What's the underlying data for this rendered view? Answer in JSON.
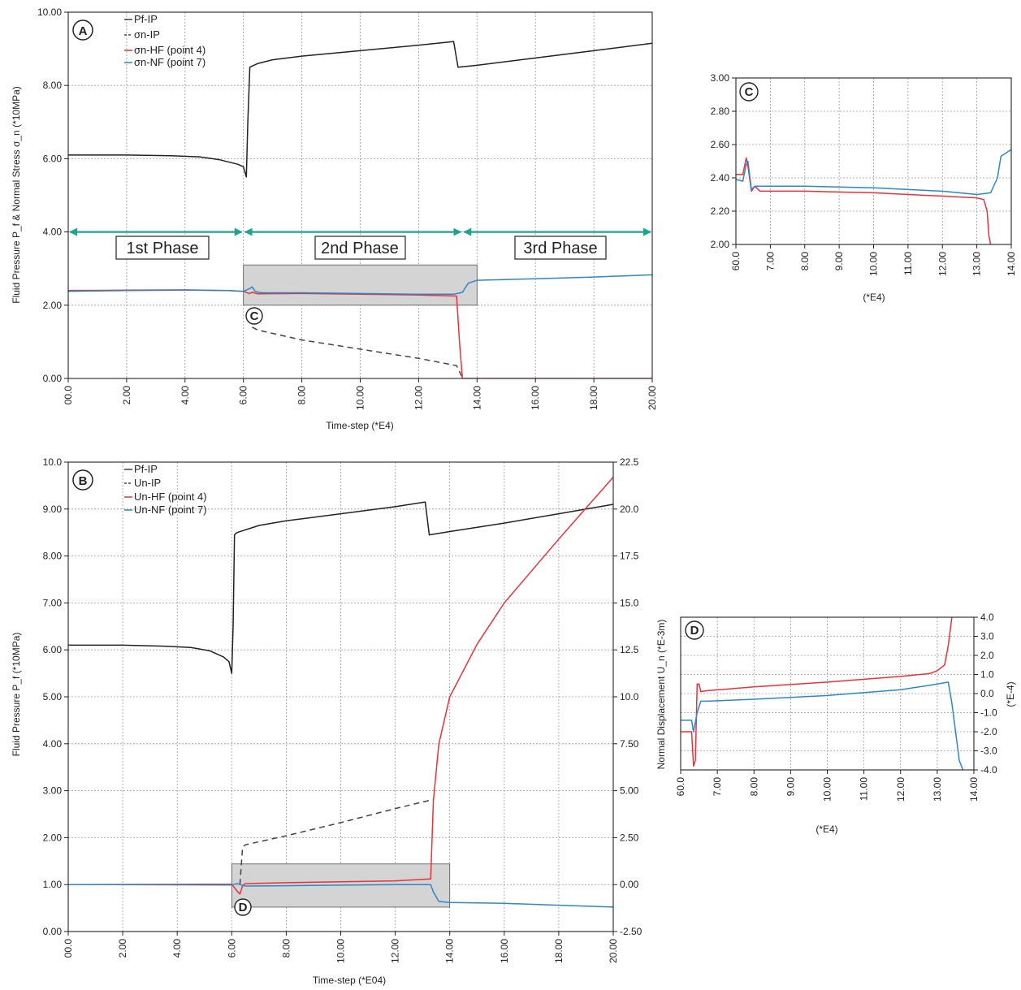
{
  "panels": {
    "A": {
      "badge": "A",
      "xlabel": "Time-step (*E4)",
      "ylabel": "Fluid Pressure P_f & Normal Stress σ_n (*10MPa)",
      "xticks": [
        "00.0",
        "2.00",
        "4.00",
        "6.00",
        "8.00",
        "10.00",
        "12.00",
        "14.00",
        "16.00",
        "18.00",
        "20.00"
      ],
      "yticks": [
        "0.00",
        "2.00",
        "4.00",
        "6.00",
        "8.00",
        "10.00"
      ],
      "legend": [
        "Pf-IP",
        "σn-IP",
        "σn-HF (point 4)",
        "σn-NF (point 7)"
      ],
      "phases": [
        "1st Phase",
        "2nd Phase",
        "3rd Phase"
      ],
      "inset_marker": "C"
    },
    "B": {
      "badge": "B",
      "xlabel": "Time-step (*E04)",
      "ylabel_left": "Fluid Pressure P_f (*10MPa)",
      "xticks": [
        "00.0",
        "2.00",
        "4.00",
        "6.00",
        "8.00",
        "10.00",
        "12.00",
        "14.00",
        "16.00",
        "18.00",
        "20.00"
      ],
      "yticks_left": [
        "0.00",
        "1.00",
        "2.00",
        "3.00",
        "4.00",
        "5.00",
        "6.00",
        "7.00",
        "8.00",
        "9.00",
        "10.0"
      ],
      "yticks_right": [
        "-2.50",
        "0.00",
        "2.50",
        "5.00",
        "7.50",
        "10.0",
        "12.5",
        "15.0",
        "17.5",
        "20.0",
        "22.5"
      ],
      "legend": [
        "Pf-IP",
        "Un-IP",
        "Un-HF (point 4)",
        "Un-NF (point 7)"
      ],
      "inset_marker": "D"
    },
    "C": {
      "badge": "C",
      "xlabel": "(*E4)",
      "xticks": [
        "60.0",
        "7.00",
        "8.00",
        "9.00",
        "10.00",
        "11.00",
        "12.00",
        "13.00",
        "14.00"
      ],
      "yticks": [
        "2.00",
        "2.20",
        "2.40",
        "2.60",
        "2.80",
        "3.00"
      ]
    },
    "D": {
      "badge": "D",
      "xlabel": "(*E4)",
      "ylabel_left": "Normal Displacement U_n (*E-3m)",
      "ylabel_right": "(*E-4)",
      "xticks": [
        "60.0",
        "7.00",
        "8.00",
        "9.00",
        "10.00",
        "11.00",
        "12.00",
        "13.00",
        "14.00"
      ],
      "yticks_right": [
        "-4.0",
        "-3.0",
        "-2.0",
        "-1.0",
        "0.0",
        "1.0",
        "2.0",
        "3.0",
        "4.0"
      ]
    }
  },
  "colors": {
    "pf": "#222222",
    "ip": "#444444",
    "hf": "#e8323c",
    "nf": "#2f86c8",
    "arrow": "#1ea58e",
    "shade": "#d4d4d4"
  },
  "chart_data": [
    {
      "id": "A",
      "type": "line",
      "xlabel": "Time-step (*E4)",
      "ylabel": "Fluid Pressure P_f & Normal Stress σ_n (*10MPa)",
      "xlim": [
        0,
        20
      ],
      "ylim": [
        0,
        10
      ],
      "grid": true,
      "legend_position": "top-left",
      "series": [
        {
          "name": "Pf-IP",
          "style": "solid",
          "color": "#222222",
          "x": [
            0,
            2,
            3.5,
            4.5,
            5.2,
            5.8,
            6.0,
            6.1,
            6.15,
            6.22,
            6.5,
            7,
            8,
            10,
            12,
            13.2,
            13.35,
            14,
            16,
            18,
            20
          ],
          "y": [
            6.1,
            6.1,
            6.08,
            6.05,
            5.97,
            5.85,
            5.78,
            5.5,
            7.0,
            8.5,
            8.6,
            8.7,
            8.8,
            8.95,
            9.1,
            9.2,
            8.5,
            8.55,
            8.75,
            8.95,
            9.15
          ]
        },
        {
          "name": "σn-IP",
          "style": "dashed",
          "color": "#444444",
          "x": [
            6.3,
            6.5,
            8,
            10,
            12,
            13.3,
            13.5
          ],
          "y": [
            1.4,
            1.32,
            1.05,
            0.8,
            0.55,
            0.35,
            0.02
          ]
        },
        {
          "name": "σn-HF (point 4)",
          "style": "solid",
          "color": "#e8323c",
          "x": [
            0,
            2,
            4,
            5.5,
            6.0,
            6.2,
            6.3,
            6.5,
            8,
            10,
            12,
            13.3,
            13.4,
            13.5,
            14,
            16,
            18,
            20
          ],
          "y": [
            2.4,
            2.41,
            2.42,
            2.4,
            2.38,
            2.32,
            2.35,
            2.31,
            2.32,
            2.3,
            2.28,
            2.25,
            1.0,
            0.0,
            0.0,
            0.0,
            0.0,
            0.0
          ]
        },
        {
          "name": "σn-NF (point 7)",
          "style": "solid",
          "color": "#2f86c8",
          "x": [
            0,
            2,
            4,
            5.5,
            6.0,
            6.2,
            6.3,
            6.4,
            6.6,
            8,
            10,
            12,
            13.2,
            13.5,
            13.7,
            14,
            16,
            18,
            20
          ],
          "y": [
            2.38,
            2.4,
            2.41,
            2.4,
            2.38,
            2.45,
            2.5,
            2.38,
            2.34,
            2.34,
            2.32,
            2.3,
            2.3,
            2.35,
            2.6,
            2.68,
            2.72,
            2.77,
            2.83
          ]
        }
      ]
    },
    {
      "id": "B",
      "type": "line",
      "xlabel": "Time-step (*E04)",
      "ylabel_left": "Fluid Pressure P_f (*10MPa)",
      "ylabel_right": "Normal Displacement U_n (*E-3m)",
      "xlim": [
        0,
        20
      ],
      "ylim_left": [
        0,
        10
      ],
      "ylim_right": [
        -2.5,
        22.5
      ],
      "grid": true,
      "legend_position": "top-left",
      "series": [
        {
          "name": "Pf-IP",
          "axis": "left",
          "style": "solid",
          "color": "#222222",
          "x": [
            0,
            2,
            3.5,
            4.5,
            5.2,
            5.7,
            5.9,
            6.0,
            6.05,
            6.1,
            6.15,
            6.2,
            7,
            8,
            10,
            12,
            13.1,
            13.25,
            14,
            16,
            18,
            20
          ],
          "y": [
            6.1,
            6.1,
            6.08,
            6.05,
            5.98,
            5.85,
            5.75,
            5.5,
            6.5,
            8.45,
            8.48,
            8.5,
            8.65,
            8.75,
            8.9,
            9.05,
            9.15,
            8.45,
            8.52,
            8.7,
            8.9,
            9.1
          ]
        },
        {
          "name": "Un-IP",
          "axis": "right",
          "style": "dashed",
          "color": "#444444",
          "x": [
            6.3,
            6.35,
            6.4,
            6.5,
            8,
            10,
            12,
            13.3,
            13.4
          ],
          "y": [
            0.0,
            1.0,
            2.0,
            2.12,
            2.6,
            3.3,
            4.05,
            4.5,
            4.55
          ]
        },
        {
          "name": "Un-HF (point 4)",
          "axis": "right",
          "style": "solid",
          "color": "#e8323c",
          "x": [
            0,
            6.0,
            6.2,
            6.3,
            6.4,
            6.5,
            8,
            10,
            12,
            13.3,
            13.4,
            13.6,
            14,
            15,
            16,
            18,
            20
          ],
          "y": [
            0.0,
            0.02,
            -0.35,
            -0.5,
            -0.05,
            0.05,
            0.1,
            0.15,
            0.2,
            0.3,
            4.5,
            7.5,
            10.0,
            12.8,
            15.0,
            18.4,
            21.7
          ]
        },
        {
          "name": "Un-NF (point 7)",
          "axis": "right",
          "style": "solid",
          "color": "#2f86c8",
          "x": [
            0,
            6.0,
            6.2,
            6.3,
            6.5,
            8,
            10,
            12,
            13.3,
            13.4,
            13.6,
            14,
            16,
            18,
            20
          ],
          "y": [
            0.0,
            -0.02,
            0.05,
            0.0,
            -0.08,
            -0.06,
            -0.03,
            0.0,
            0.0,
            -0.4,
            -0.9,
            -0.95,
            -1.0,
            -1.1,
            -1.2
          ]
        }
      ]
    },
    {
      "id": "C",
      "type": "line",
      "xlabel": "(*E4)",
      "xlim": [
        6,
        14
      ],
      "ylim": [
        2.0,
        3.0
      ],
      "grid": true,
      "series": [
        {
          "name": "σn-HF (point 4)",
          "color": "#e8323c",
          "x": [
            6.0,
            6.2,
            6.3,
            6.35,
            6.45,
            6.55,
            6.7,
            8,
            10,
            12,
            13.0,
            13.2,
            13.3,
            13.35,
            13.4
          ],
          "y": [
            2.42,
            2.42,
            2.52,
            2.47,
            2.32,
            2.35,
            2.32,
            2.32,
            2.31,
            2.29,
            2.28,
            2.27,
            2.2,
            2.05,
            2.0
          ]
        },
        {
          "name": "σn-NF (point 7)",
          "color": "#2f86c8",
          "x": [
            6.0,
            6.2,
            6.3,
            6.35,
            6.45,
            6.55,
            6.7,
            8,
            10,
            12,
            13.0,
            13.4,
            13.6,
            13.7,
            14.0
          ],
          "y": [
            2.39,
            2.38,
            2.48,
            2.5,
            2.33,
            2.35,
            2.35,
            2.35,
            2.34,
            2.32,
            2.3,
            2.31,
            2.4,
            2.53,
            2.57
          ]
        }
      ]
    },
    {
      "id": "D",
      "type": "line",
      "xlabel": "(*E4)",
      "ylabel_right": "(*E-4)",
      "xlim": [
        6,
        14
      ],
      "ylim": [
        -4.0,
        4.0
      ],
      "grid": true,
      "series": [
        {
          "name": "Un-HF (point 4)",
          "color": "#e8323c",
          "x": [
            6.0,
            6.3,
            6.35,
            6.4,
            6.45,
            6.5,
            6.55,
            6.7,
            8,
            10,
            12,
            12.8,
            13.0,
            13.2,
            13.3,
            13.4
          ],
          "y": [
            -2.0,
            -2.0,
            -3.8,
            -3.5,
            0.5,
            0.5,
            0.1,
            0.15,
            0.35,
            0.6,
            0.9,
            1.05,
            1.2,
            1.5,
            2.5,
            4.0
          ]
        },
        {
          "name": "Un-NF (point 7)",
          "color": "#2f86c8",
          "x": [
            6.0,
            6.3,
            6.35,
            6.45,
            6.55,
            6.7,
            8,
            10,
            12,
            13.0,
            13.3,
            13.4,
            13.6,
            13.7
          ],
          "y": [
            -1.4,
            -1.4,
            -2.0,
            -1.0,
            -0.4,
            -0.4,
            -0.3,
            -0.1,
            0.2,
            0.5,
            0.6,
            -0.5,
            -3.5,
            -4.0
          ]
        }
      ]
    }
  ]
}
